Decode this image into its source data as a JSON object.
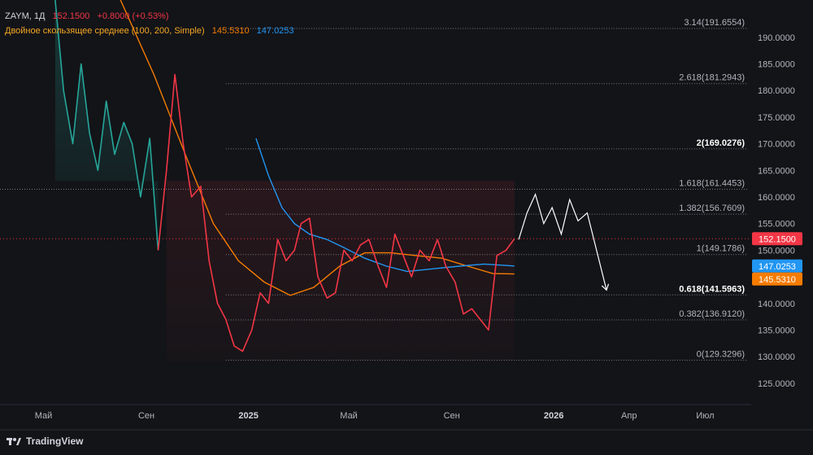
{
  "header": {
    "symbol": "ZAYM, 1Д",
    "price": "152.1500",
    "change": "+0.8000 (+0.53%)",
    "indicator_name": "Двойное скользящее среднее (100, 200, Simple)",
    "ma_value_1": "145.5310",
    "ma_value_2": "147.0253"
  },
  "brand": {
    "name": "TradingView"
  },
  "colors": {
    "background": "#131418",
    "up": "#26a69a",
    "down": "#f23645",
    "ma_orange": "#f57c00",
    "ma_blue": "#2196f3",
    "fib_line": "#787b86",
    "last_price_badge": "#f23645",
    "ma_blue_badge": "#2196f3",
    "ma_orange_badge": "#f57c00"
  },
  "chart_data": {
    "type": "line",
    "y_axis": {
      "range": [
        121,
        197
      ],
      "ticks": [
        "125.0000",
        "130.0000",
        "135.0000",
        "140.0000",
        "145.0000",
        "150.0000",
        "155.0000",
        "160.0000",
        "165.0000",
        "170.0000",
        "175.0000",
        "180.0000",
        "185.0000",
        "190.0000"
      ],
      "tick_values": [
        125,
        130,
        135,
        140,
        145,
        150,
        155,
        160,
        165,
        170,
        175,
        180,
        185,
        190
      ]
    },
    "x_axis": {
      "range": [
        "2024-03-10",
        "2026-08-25"
      ],
      "ticks": [
        {
          "label": "Май",
          "date": "2024-05-01"
        },
        {
          "label": "Сен",
          "date": "2024-09-01"
        },
        {
          "label": "2025",
          "date": "2025-01-01"
        },
        {
          "label": "Май",
          "date": "2025-05-01"
        },
        {
          "label": "Сен",
          "date": "2025-09-01"
        },
        {
          "label": "2026",
          "date": "2026-01-01"
        },
        {
          "label": "Апр",
          "date": "2026-04-01"
        },
        {
          "label": "Июл",
          "date": "2026-07-01"
        }
      ]
    },
    "price_series": {
      "name": "ZAYM",
      "x": [
        "2024-05-15",
        "2024-05-25",
        "2024-06-05",
        "2024-06-15",
        "2024-06-25",
        "2024-07-05",
        "2024-07-15",
        "2024-07-25",
        "2024-08-05",
        "2024-08-15",
        "2024-08-25",
        "2024-09-05",
        "2024-09-15",
        "2024-09-25",
        "2024-10-05",
        "2024-10-15",
        "2024-10-25",
        "2024-11-05",
        "2024-11-15",
        "2024-11-25",
        "2024-12-05",
        "2024-12-15",
        "2024-12-25",
        "2025-01-05",
        "2025-01-15",
        "2025-01-25",
        "2025-02-05",
        "2025-02-15",
        "2025-02-25",
        "2025-03-05",
        "2025-03-15",
        "2025-03-25",
        "2025-04-05",
        "2025-04-15",
        "2025-04-25",
        "2025-05-05",
        "2025-05-15",
        "2025-05-25",
        "2025-06-05",
        "2025-06-15",
        "2025-06-25",
        "2025-07-05",
        "2025-07-15",
        "2025-07-25",
        "2025-08-05",
        "2025-08-15",
        "2025-08-25",
        "2025-09-05",
        "2025-09-15",
        "2025-09-25",
        "2025-10-05",
        "2025-10-15",
        "2025-10-25",
        "2025-11-05",
        "2025-11-15"
      ],
      "y": [
        197,
        180,
        170,
        185,
        172,
        165,
        178,
        168,
        174,
        170,
        160,
        171,
        150,
        165,
        183,
        170,
        160,
        162,
        148,
        140,
        137,
        132,
        131,
        135,
        142,
        140,
        152,
        148,
        150,
        155,
        156,
        145,
        141,
        142,
        150,
        148,
        151,
        152,
        147,
        143,
        153,
        149,
        145,
        150,
        148,
        152,
        147,
        144,
        138,
        139,
        137,
        135,
        149,
        150,
        152.15
      ]
    },
    "ma_series": [
      {
        "name": "145.5310",
        "x": [
          "2024-08-01",
          "2024-09-10",
          "2024-10-20",
          "2024-11-20",
          "2024-12-20",
          "2025-01-20",
          "2025-02-20",
          "2025-03-20",
          "2025-04-20",
          "2025-05-20",
          "2025-06-20",
          "2025-07-20",
          "2025-08-20",
          "2025-09-20",
          "2025-10-20",
          "2025-11-15"
        ],
        "y": [
          197,
          183,
          167,
          155,
          148,
          144,
          141.5,
          143,
          147,
          149.5,
          149.5,
          149,
          148.5,
          147,
          145.6,
          145.53
        ]
      },
      {
        "name": "147.0253",
        "x": [
          "2025-01-10",
          "2025-01-25",
          "2025-02-10",
          "2025-02-25",
          "2025-03-15",
          "2025-04-05",
          "2025-04-25",
          "2025-05-20",
          "2025-06-15",
          "2025-07-10",
          "2025-08-10",
          "2025-09-10",
          "2025-10-10",
          "2025-11-15"
        ],
        "y": [
          171,
          164,
          158,
          155,
          153,
          152,
          150.5,
          148.5,
          147,
          146,
          146.5,
          147,
          147.4,
          147.0253
        ]
      }
    ],
    "projection": {
      "x": [
        "2025-11-20",
        "2025-11-30",
        "2025-12-10",
        "2025-12-20",
        "2025-12-30",
        "2026-01-10",
        "2026-01-20",
        "2026-01-30",
        "2026-02-10",
        "2026-03-05"
      ],
      "y": [
        152,
        157,
        160.5,
        155,
        158,
        153,
        159.5,
        155.5,
        157,
        142.5
      ]
    },
    "fib_levels": [
      {
        "label": "0(129.3296)",
        "value": 129.3296,
        "bold": false
      },
      {
        "label": "0.382(136.9120)",
        "value": 136.912,
        "bold": false
      },
      {
        "label": "0.618(141.5963)",
        "value": 141.5963,
        "bold": true
      },
      {
        "label": "1(149.1786)",
        "value": 149.1786,
        "bold": false
      },
      {
        "label": "1.382(156.7609)",
        "value": 156.7609,
        "bold": false
      },
      {
        "label": "1.618(161.4453)",
        "value": 161.4453,
        "bold": false
      },
      {
        "label": "2(169.0276)",
        "value": 169.0276,
        "bold": true
      },
      {
        "label": "2.618(181.2943)",
        "value": 181.2943,
        "bold": false
      },
      {
        "label": "3.14(191.6554)",
        "value": 191.6554,
        "bold": false
      }
    ],
    "price_badges": [
      {
        "label": "152.1500",
        "value": 152.15,
        "color": "#f23645"
      },
      {
        "label": "147.0253",
        "value": 147.0253,
        "color": "#2196f3"
      },
      {
        "label": "145.5310",
        "value": 145.531,
        "color": "#f57c00"
      }
    ],
    "last_price": 152.15,
    "hline_1618_extends_full": true,
    "grid": false
  }
}
